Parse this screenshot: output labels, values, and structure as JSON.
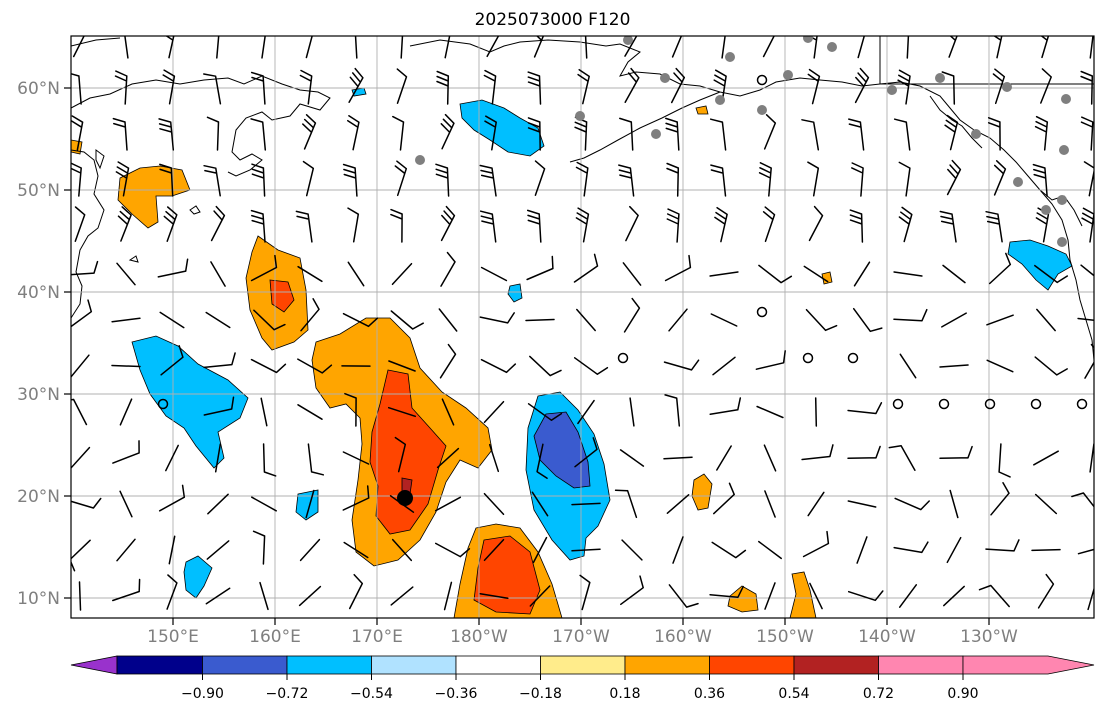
{
  "title": "2025073000 F120",
  "map": {
    "lat_labels": [
      {
        "lat": 60,
        "text": "60°N"
      },
      {
        "lat": 50,
        "text": "50°N"
      },
      {
        "lat": 40,
        "text": "40°N"
      },
      {
        "lat": 30,
        "text": "30°N"
      },
      {
        "lat": 20,
        "text": "20°N"
      },
      {
        "lat": 10,
        "text": "10°N"
      }
    ],
    "lon_labels": [
      {
        "lon": 150,
        "text": "150°E"
      },
      {
        "lon": 160,
        "text": "160°E"
      },
      {
        "lon": 170,
        "text": "170°E"
      },
      {
        "lon": 180,
        "text": "180°W"
      },
      {
        "lon": 190,
        "text": "170°W"
      },
      {
        "lon": 200,
        "text": "160°W"
      },
      {
        "lon": 210,
        "text": "150°W"
      },
      {
        "lon": 220,
        "text": "140°W"
      },
      {
        "lon": 230,
        "text": "130°W"
      }
    ],
    "extent": {
      "lon_min": 140,
      "lon_max": 240,
      "lat_min": 8,
      "lat_max": 65
    },
    "storm_center": {
      "lon": 183,
      "lat": 19.8
    }
  },
  "colorbar": {
    "colors": [
      "#9932cc",
      "#00008b",
      "#3a5bcf",
      "#00bfff",
      "#b0e2ff",
      "#ffffff",
      "#ffec8b",
      "#ffa500",
      "#ff4500",
      "#b22222",
      "#ff86b0"
    ],
    "labels": [
      "−0.90",
      "−0.72",
      "−0.54",
      "−0.36",
      "−0.18",
      "0.18",
      "0.36",
      "0.54",
      "0.72",
      "0.90"
    ]
  },
  "colors": {
    "orange": "#ffa500",
    "red_orange": "#ff4500",
    "dark_red": "#b22222",
    "cyan": "#00bfff",
    "blue": "#3a5bcf",
    "land_dot": "#7f7f7f"
  }
}
